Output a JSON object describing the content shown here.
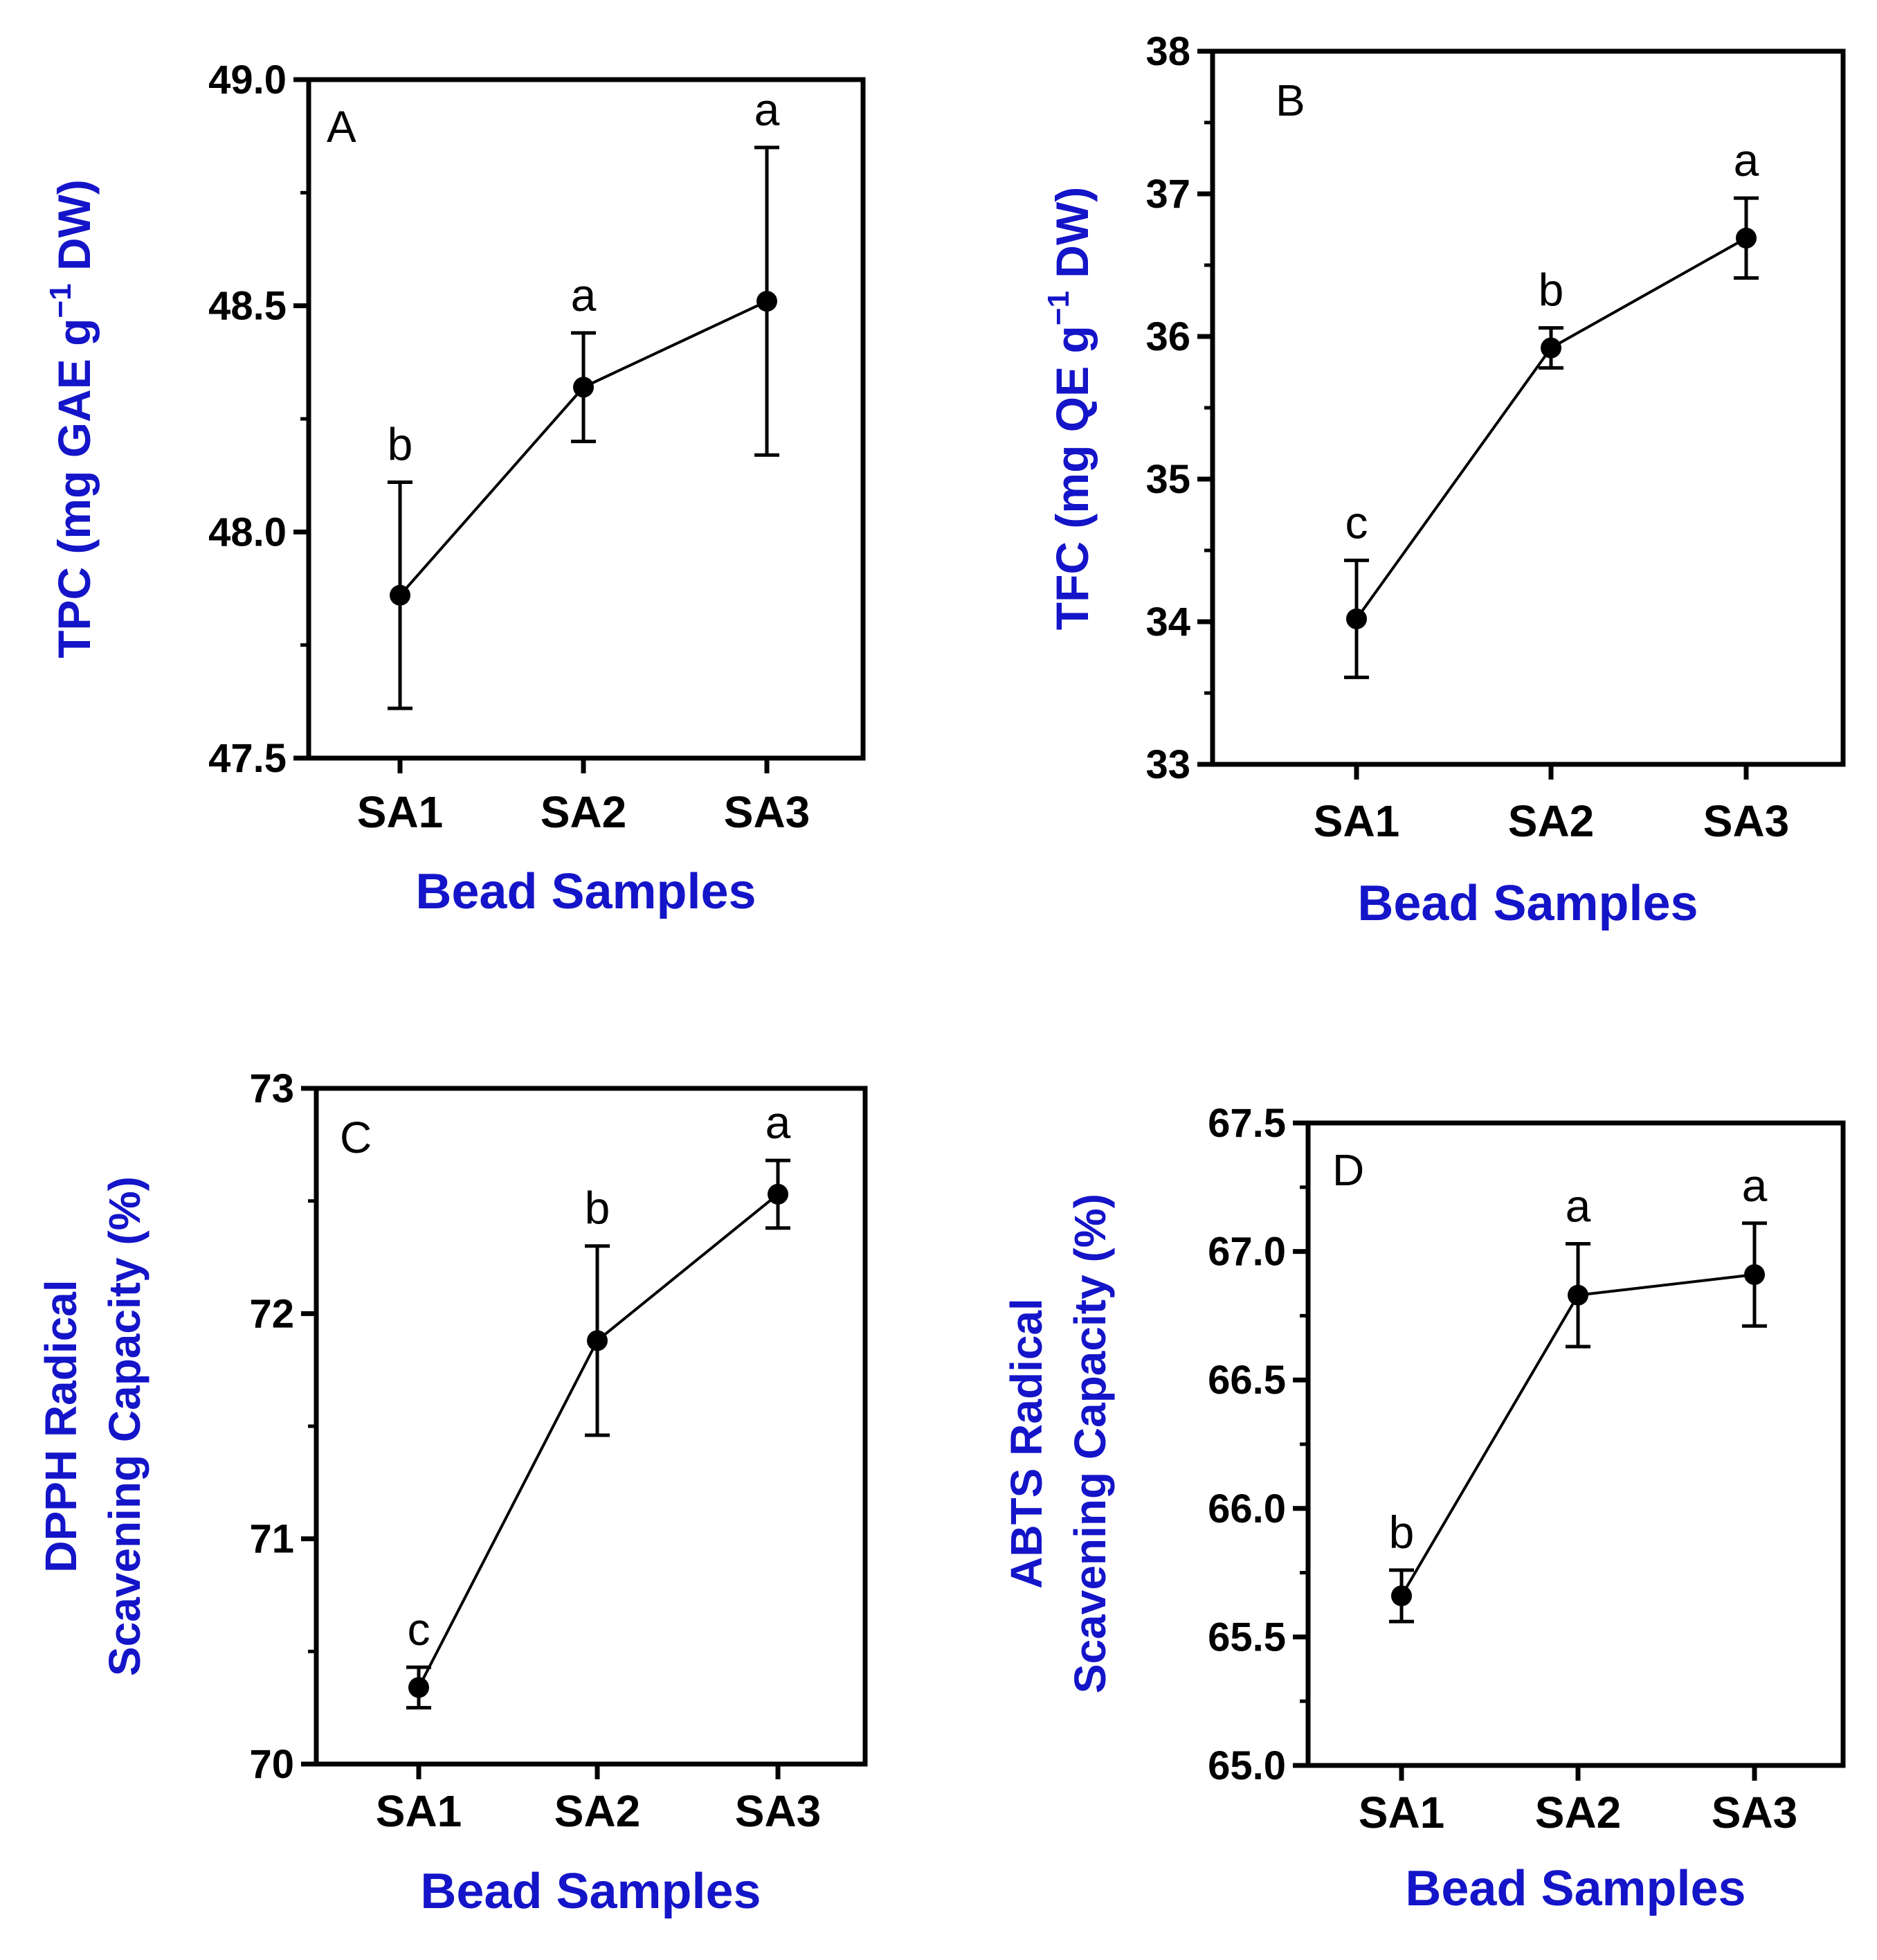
{
  "chart_data": [
    {
      "type": "line",
      "panel_label": "A",
      "categories": [
        "SA1",
        "SA2",
        "SA3"
      ],
      "values": [
        47.86,
        48.32,
        48.51
      ],
      "errors": [
        0.25,
        0.12,
        0.34
      ],
      "significance": [
        "b",
        "a",
        "a"
      ],
      "xlabel": "Bead Samples",
      "ylabel": "TPC (mg GAE g",
      "ylabel_sup": "−1",
      "ylabel_tail": " DW)",
      "ylim": [
        47.5,
        49.0
      ],
      "yticks": [
        "47.5",
        "48.0",
        "48.5",
        "49.0"
      ],
      "grid": false
    },
    {
      "type": "line",
      "panel_label": "B",
      "categories": [
        "SA1",
        "SA2",
        "SA3"
      ],
      "values": [
        34.02,
        35.92,
        36.69
      ],
      "errors": [
        0.41,
        0.14,
        0.28
      ],
      "significance": [
        "c",
        "b",
        "a"
      ],
      "xlabel": "Bead Samples",
      "ylabel": "TFC (mg QE g",
      "ylabel_sup": "−1",
      "ylabel_tail": " DW)",
      "ylim": [
        33,
        38
      ],
      "yticks": [
        "33",
        "34",
        "35",
        "36",
        "37",
        "38"
      ],
      "grid": false
    },
    {
      "type": "line",
      "panel_label": "C",
      "categories": [
        "SA1",
        "SA2",
        "SA3"
      ],
      "values": [
        70.34,
        71.88,
        72.53
      ],
      "errors": [
        0.09,
        0.42,
        0.15
      ],
      "significance": [
        "c",
        "b",
        "a"
      ],
      "xlabel": "Bead Samples",
      "ylabel_lines": [
        "DPPH Radical",
        "Scavening Capacity (%)"
      ],
      "ylim": [
        70,
        73
      ],
      "yticks": [
        "70",
        "71",
        "72",
        "73"
      ],
      "grid": false
    },
    {
      "type": "line",
      "panel_label": "D",
      "categories": [
        "SA1",
        "SA2",
        "SA3"
      ],
      "values": [
        65.66,
        66.83,
        66.91
      ],
      "errors": [
        0.1,
        0.2,
        0.2
      ],
      "significance": [
        "b",
        "a",
        "a"
      ],
      "xlabel": "Bead Samples",
      "ylabel_lines": [
        "ABTS Radical",
        "Scavening Capacity (%)"
      ],
      "ylim": [
        65.0,
        67.5
      ],
      "yticks": [
        "65.0",
        "65.5",
        "66.0",
        "66.5",
        "67.0",
        "67.5"
      ],
      "grid": false
    }
  ]
}
